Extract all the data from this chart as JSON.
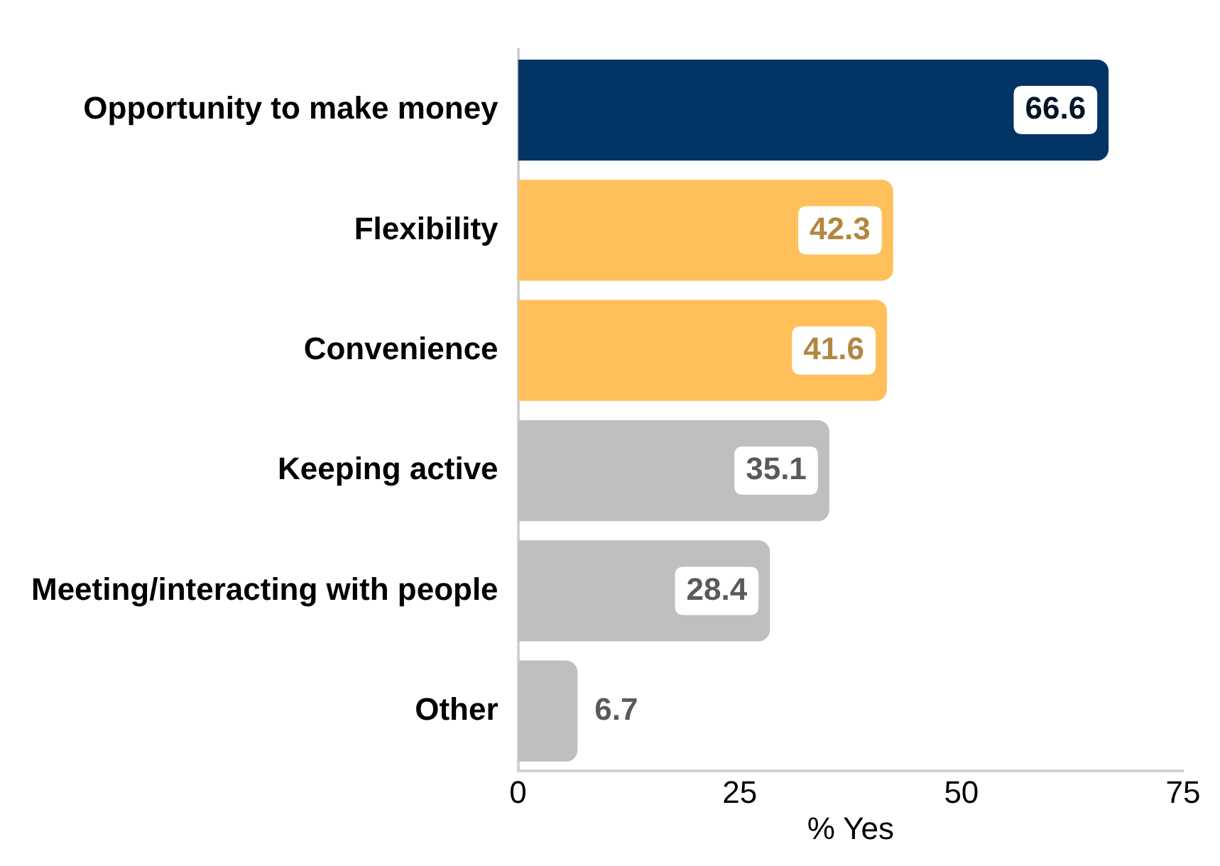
{
  "chart_data": {
    "type": "bar",
    "orientation": "horizontal",
    "xlabel": "% Yes",
    "categories": [
      "Opportunity to make money",
      "Flexibility",
      "Convenience",
      "Keeping active",
      "Meeting/interacting with people",
      "Other"
    ],
    "values": [
      66.6,
      42.3,
      41.6,
      35.1,
      28.4,
      6.7
    ],
    "colors": [
      "#023565",
      "#ffc05c",
      "#ffc05c",
      "#bfbfbf",
      "#bfbfbf",
      "#bfbfbf"
    ],
    "xlim": [
      0,
      75
    ],
    "xticks": [
      0,
      25,
      50,
      75
    ],
    "grid": false,
    "data_labels": true,
    "legend": false
  }
}
